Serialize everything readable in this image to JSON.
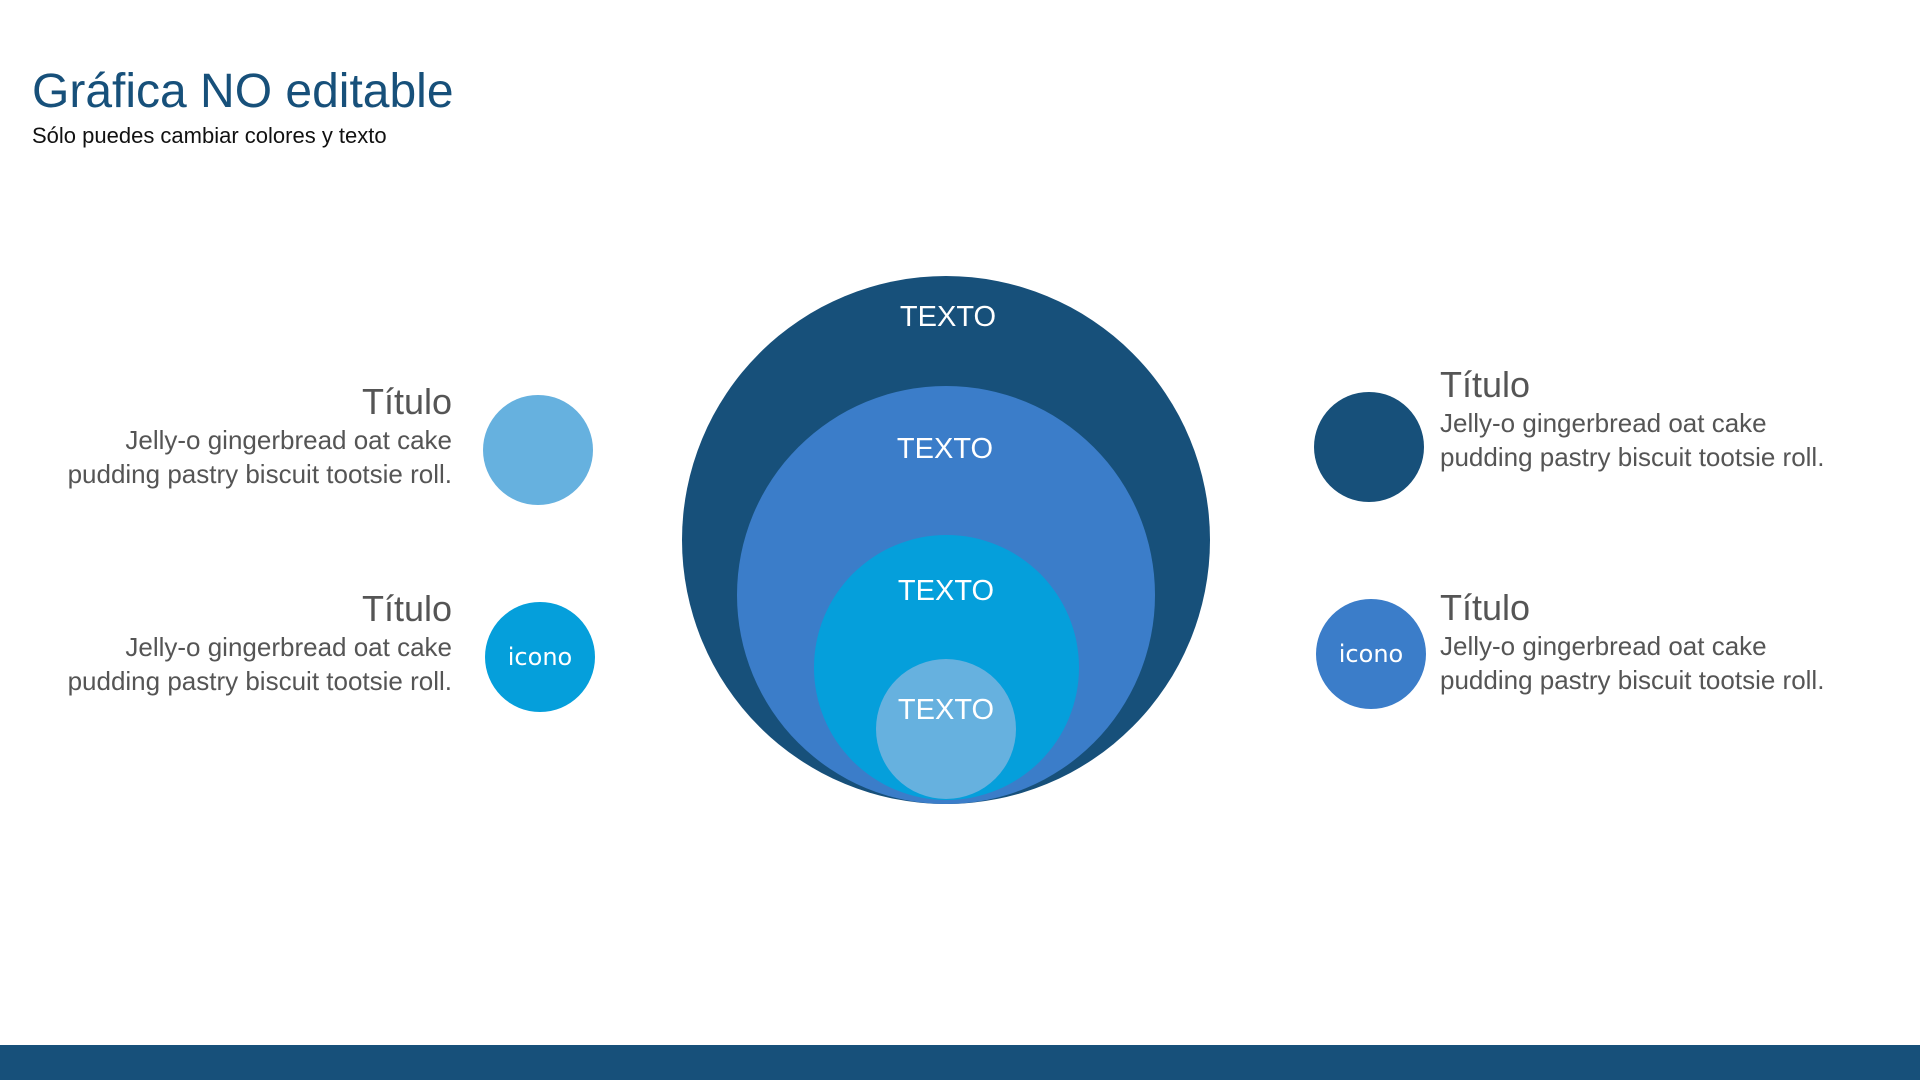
{
  "slide": {
    "title": "Gráfica NO editable",
    "subtitle": "Sólo puedes cambiar colores y texto"
  },
  "colors": {
    "dark_blue": "#17507a",
    "medium_blue": "#3b7dc9",
    "cyan": "#059fdb",
    "light_blue": "#66b1df",
    "text_gray": "#555555"
  },
  "nested_circles": [
    {
      "label": "TEXTO",
      "color": "#17507a"
    },
    {
      "label": "TEXTO",
      "color": "#3b7dc9"
    },
    {
      "label": "TEXTO",
      "color": "#059fdb"
    },
    {
      "label": "TEXTO",
      "color": "#66b1df"
    }
  ],
  "items": [
    {
      "title": "Título",
      "body_line1": "Jelly-o gingerbread oat cake",
      "body_line2": "pudding pastry biscuit tootsie roll.",
      "icon_label": "",
      "color": "#66b1df"
    },
    {
      "title": "Título",
      "body_line1": "Jelly-o gingerbread oat cake",
      "body_line2": "pudding pastry biscuit tootsie roll.",
      "icon_label": "icono",
      "color": "#059fdb"
    },
    {
      "title": "Título",
      "body_line1": "Jelly-o gingerbread oat cake",
      "body_line2": "pudding pastry biscuit tootsie roll.",
      "icon_label": "",
      "color": "#17507a"
    },
    {
      "title": "Título",
      "body_line1": "Jelly-o gingerbread oat cake",
      "body_line2": "pudding pastry biscuit tootsie roll.",
      "icon_label": "icono",
      "color": "#3b7dc9"
    }
  ]
}
